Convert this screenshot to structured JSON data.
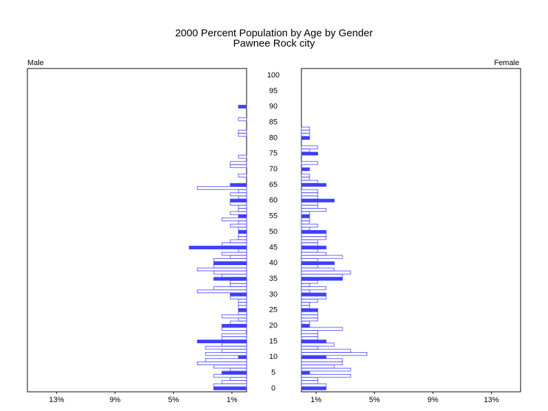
{
  "chart_data": {
    "type": "pyramid",
    "title": "2000 Percent Population by Age by Gender",
    "subtitle": "Pawnee Rock city",
    "categories": [
      0,
      null,
      null,
      null,
      null,
      5,
      null,
      null,
      null,
      null,
      10,
      null,
      null,
      null,
      null,
      15,
      null,
      null,
      null,
      null,
      20,
      null,
      null,
      null,
      null,
      25,
      null,
      null,
      null,
      null,
      30,
      null,
      null,
      null,
      null,
      35,
      null,
      null,
      null,
      null,
      40,
      null,
      null,
      null,
      null,
      45,
      null,
      null,
      null,
      null,
      50,
      null,
      null,
      null,
      null,
      55,
      null,
      null,
      null,
      null,
      60,
      null,
      null,
      null,
      null,
      65,
      null,
      null,
      null,
      null,
      70,
      null,
      null,
      null,
      null,
      75,
      null,
      null,
      null,
      null,
      80,
      null,
      null,
      null,
      null,
      85,
      null,
      null,
      null,
      null,
      90,
      null,
      null,
      null,
      null,
      95,
      null,
      null,
      null,
      null,
      100
    ],
    "xlim": [
      0,
      15
    ],
    "xticks": [
      {
        "value": 1,
        "label": "1%"
      },
      {
        "value": 5,
        "label": "5%"
      },
      {
        "value": 9,
        "label": "9%"
      },
      {
        "value": 13,
        "label": "13%"
      }
    ],
    "series": [
      {
        "name": "Male",
        "color": "#3f3fff",
        "values": [
          2.25,
          2.25,
          1.69,
          1.12,
          2.25,
          1.69,
          1.12,
          2.25,
          3.37,
          2.81,
          0.56,
          2.81,
          1.69,
          2.81,
          1.69,
          3.37,
          1.69,
          1.69,
          0,
          1.69,
          1.69,
          1.12,
          0.56,
          1.69,
          0.56,
          0.56,
          0.56,
          0.56,
          0.56,
          1.12,
          1.12,
          3.37,
          2.25,
          1.12,
          1.12,
          2.25,
          1.69,
          2.25,
          3.37,
          2.25,
          2.25,
          2.25,
          1.12,
          1.69,
          0.56,
          3.93,
          1.69,
          1.12,
          0.56,
          0.56,
          0.56,
          0.56,
          1.12,
          0.56,
          1.69,
          0.56,
          1.12,
          0.56,
          0.56,
          1.12,
          1.12,
          0.56,
          1.12,
          0.56,
          3.37,
          1.12,
          0,
          0,
          0.56,
          0,
          0,
          1.12,
          1.12,
          0,
          0.56,
          0,
          0,
          0,
          0,
          0,
          0,
          0.56,
          0.56,
          0,
          0,
          0,
          0.56,
          0,
          0,
          0,
          0.56,
          0,
          0,
          0,
          0,
          0,
          0,
          0,
          0,
          0,
          0
        ]
      },
      {
        "name": "Female",
        "color": "#3f3fff",
        "values": [
          1.69,
          1.69,
          1.12,
          1.12,
          3.37,
          0.56,
          3.37,
          2.25,
          2.81,
          2.81,
          1.69,
          4.49,
          3.37,
          1.12,
          2.25,
          1.69,
          1.12,
          1.12,
          1.12,
          2.81,
          0.56,
          0.56,
          1.12,
          1.12,
          1.12,
          1.12,
          0.56,
          0.56,
          1.12,
          1.69,
          1.69,
          0.56,
          1.69,
          0.56,
          1.12,
          2.81,
          2.81,
          3.37,
          2.25,
          1.12,
          2.25,
          1.12,
          2.81,
          1.69,
          1.12,
          1.69,
          1.12,
          1.12,
          1.69,
          1.69,
          1.69,
          0.56,
          1.12,
          0.56,
          0.56,
          0.56,
          0.56,
          1.69,
          1.12,
          1.12,
          2.25,
          1.12,
          1.12,
          1.12,
          0,
          1.69,
          1.12,
          0.56,
          0.56,
          0,
          0.56,
          0,
          1.12,
          0,
          0,
          1.12,
          0.56,
          1.12,
          0,
          0,
          0.56,
          0.56,
          0.56,
          0.56,
          0,
          0,
          0,
          0,
          0,
          0,
          0,
          0,
          0,
          0,
          0,
          0,
          0,
          0,
          0,
          0,
          0
        ]
      }
    ]
  }
}
